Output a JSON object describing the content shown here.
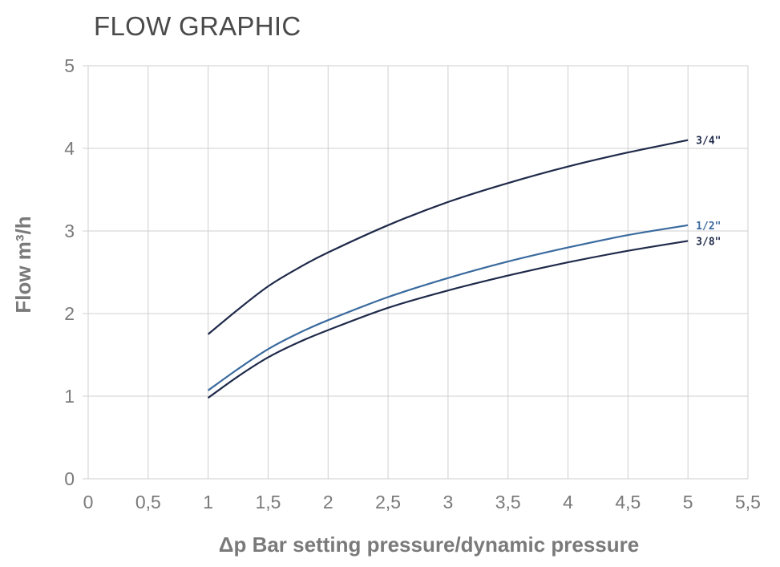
{
  "chart_data": {
    "type": "line",
    "title": "FLOW GRAPHIC",
    "xlabel": "Δp Bar setting pressure/dynamic pressure",
    "ylabel": "Flow m³/h",
    "xlim": [
      0,
      5.5
    ],
    "ylim": [
      0,
      5
    ],
    "x_ticks": [
      "0",
      "0,5",
      "1",
      "1,5",
      "2",
      "2,5",
      "3",
      "3,5",
      "4",
      "4,5",
      "5",
      "5,5"
    ],
    "y_ticks": [
      "0",
      "1",
      "2",
      "3",
      "4",
      "5"
    ],
    "grid": true,
    "series": [
      {
        "name": "3/4\"",
        "color": "#1f2a4a",
        "points": [
          [
            1,
            1.75
          ],
          [
            1.25,
            2.05
          ],
          [
            1.5,
            2.33
          ],
          [
            1.75,
            2.55
          ],
          [
            2,
            2.74
          ],
          [
            2.5,
            3.07
          ],
          [
            3,
            3.35
          ],
          [
            3.5,
            3.58
          ],
          [
            4,
            3.78
          ],
          [
            4.5,
            3.95
          ],
          [
            5,
            4.1
          ]
        ]
      },
      {
        "name": "1/2\"",
        "color": "#3a6a9e",
        "points": [
          [
            1,
            1.07
          ],
          [
            1.25,
            1.33
          ],
          [
            1.5,
            1.57
          ],
          [
            1.75,
            1.76
          ],
          [
            2,
            1.92
          ],
          [
            2.5,
            2.2
          ],
          [
            3,
            2.43
          ],
          [
            3.5,
            2.63
          ],
          [
            4,
            2.8
          ],
          [
            4.5,
            2.95
          ],
          [
            5,
            3.07
          ]
        ]
      },
      {
        "name": "3/8\"",
        "color": "#1f2a4a",
        "points": [
          [
            1,
            0.98
          ],
          [
            1.25,
            1.24
          ],
          [
            1.5,
            1.47
          ],
          [
            1.75,
            1.65
          ],
          [
            2,
            1.8
          ],
          [
            2.5,
            2.07
          ],
          [
            3,
            2.28
          ],
          [
            3.5,
            2.46
          ],
          [
            4,
            2.62
          ],
          [
            4.5,
            2.76
          ],
          [
            5,
            2.88
          ]
        ]
      }
    ]
  }
}
